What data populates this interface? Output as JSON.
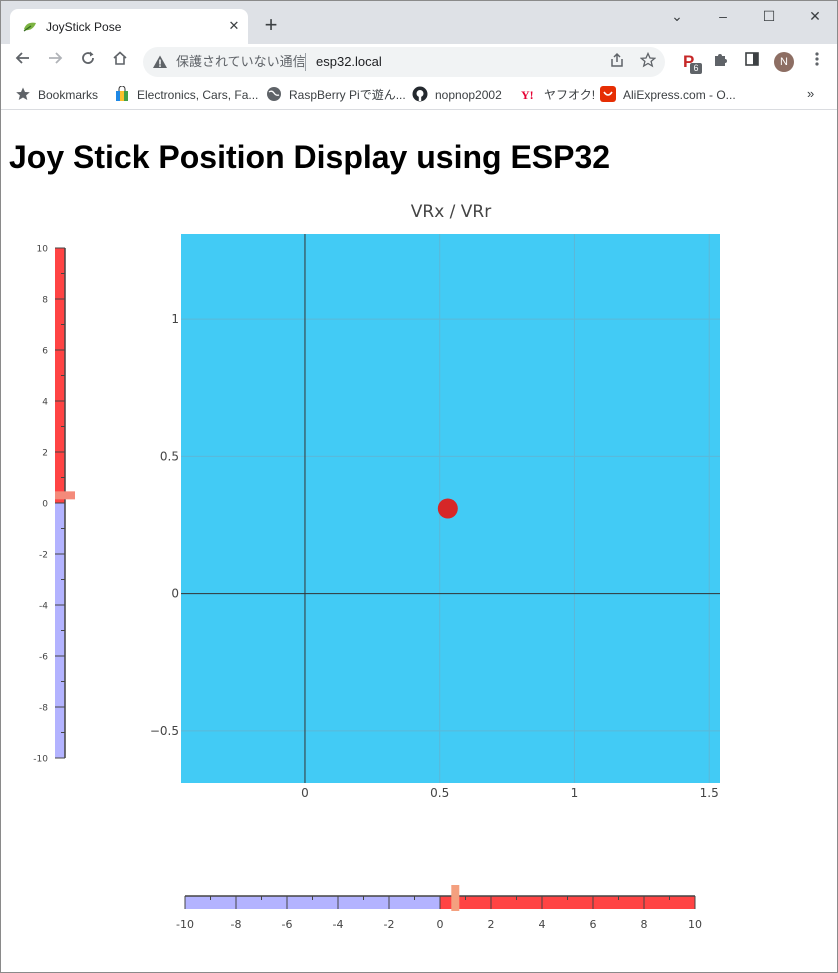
{
  "tab": {
    "title": "JoyStick Pose",
    "close_glyph": "✕"
  },
  "window_controls": {
    "minimize": "–",
    "maximize": "☐",
    "close": "✕",
    "tab_search": "⌄"
  },
  "new_tab_glyph": "+",
  "omnibox": {
    "security_text": "保護されていない通信",
    "url": "esp32.local"
  },
  "extension_badge": "6",
  "profile_initial": "N",
  "bookmarks": [
    {
      "label": "Bookmarks",
      "icon": "star-icon"
    },
    {
      "label": "Electronics, Cars, Fa...",
      "icon": "shopping-bag-icon"
    },
    {
      "label": "RaspBerry Piで遊ん...",
      "icon": "globe-icon"
    },
    {
      "label": "nopnop2002",
      "icon": "github-icon"
    },
    {
      "label": "ヤフオク!",
      "icon": "yahoo-icon"
    },
    {
      "label": "AliExpress.com - O...",
      "icon": "aliexpress-icon"
    }
  ],
  "bookmarks_more": "»",
  "page": {
    "heading": "Joy Stick Position Display using ESP32"
  },
  "chart_data": [
    {
      "type": "scatter",
      "title": "VRx / VRr",
      "points": [
        {
          "x": 0.53,
          "y": 0.31
        }
      ],
      "xlim": [
        -0.46,
        1.54
      ],
      "ylim": [
        -0.69,
        1.31
      ],
      "xticks": [
        "0",
        "0.5",
        "1",
        "1.5"
      ],
      "yticks": [
        "−0.5",
        "0",
        "0.5",
        "1"
      ],
      "background": "#42cbf5",
      "marker_color": "#d62728",
      "grid": true
    },
    {
      "type": "bullet-gauge",
      "orientation": "vertical",
      "range": [
        -10,
        10
      ],
      "value": 0.3,
      "ticks": [
        "10",
        "8",
        "6",
        "4",
        "2",
        "0",
        "-2",
        "-4",
        "-6",
        "-8",
        "-10"
      ],
      "negative_color": "#b3b3ff",
      "positive_color": "#ff4444",
      "marker_color": "#f48a7a"
    },
    {
      "type": "bullet-gauge",
      "orientation": "horizontal",
      "range": [
        -10,
        10
      ],
      "value": 0.6,
      "ticks": [
        "-10",
        "-8",
        "-6",
        "-4",
        "-2",
        "0",
        "2",
        "4",
        "6",
        "8",
        "10"
      ],
      "negative_color": "#b3b3ff",
      "positive_color": "#ff4444",
      "marker_color": "#f4a07f"
    }
  ]
}
